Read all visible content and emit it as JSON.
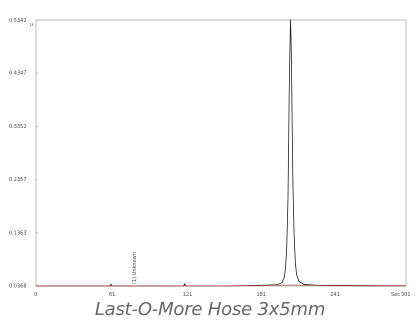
{
  "chart_data": {
    "type": "line",
    "x_ticks": [
      0,
      61,
      121,
      181,
      241
    ],
    "x_unit": "Sec",
    "x_end_label": "301",
    "y_ticks": [
      "0.5342",
      "0.4347",
      "0.3352",
      "0.2357",
      "0.1363",
      "0.0368"
    ],
    "y_top_marker": "u",
    "xlim": [
      0,
      301
    ],
    "ylim": [
      0.0368,
      0.5342
    ],
    "peak": {
      "x": 207,
      "y": 0.5342
    },
    "annotation": "(1) Unknown",
    "series": [
      {
        "color": "#222222",
        "x": [
          0,
          20,
          40,
          60,
          61,
          62,
          80,
          100,
          120,
          121,
          122,
          140,
          160,
          180,
          196,
          200,
          202,
          203,
          204,
          205,
          205.5,
          206,
          206.5,
          207,
          207.5,
          208,
          208.5,
          209,
          210,
          211,
          212,
          214,
          218,
          230,
          250,
          270,
          290,
          301
        ],
        "y": [
          0.037,
          0.037,
          0.037,
          0.037,
          0.04,
          0.037,
          0.037,
          0.037,
          0.037,
          0.041,
          0.037,
          0.037,
          0.037,
          0.038,
          0.039,
          0.043,
          0.053,
          0.07,
          0.11,
          0.2,
          0.3,
          0.4,
          0.47,
          0.5342,
          0.5,
          0.42,
          0.32,
          0.23,
          0.13,
          0.08,
          0.058,
          0.045,
          0.04,
          0.038,
          0.0375,
          0.037,
          0.037,
          0.037
        ]
      },
      {
        "color": "#c0392b",
        "x": [
          0,
          100,
          180,
          200,
          214,
          240,
          301
        ],
        "y": [
          0.037,
          0.037,
          0.0375,
          0.0385,
          0.0385,
          0.038,
          0.0375
        ]
      }
    ]
  },
  "caption": "Last-O-More Hose 3x5mm"
}
